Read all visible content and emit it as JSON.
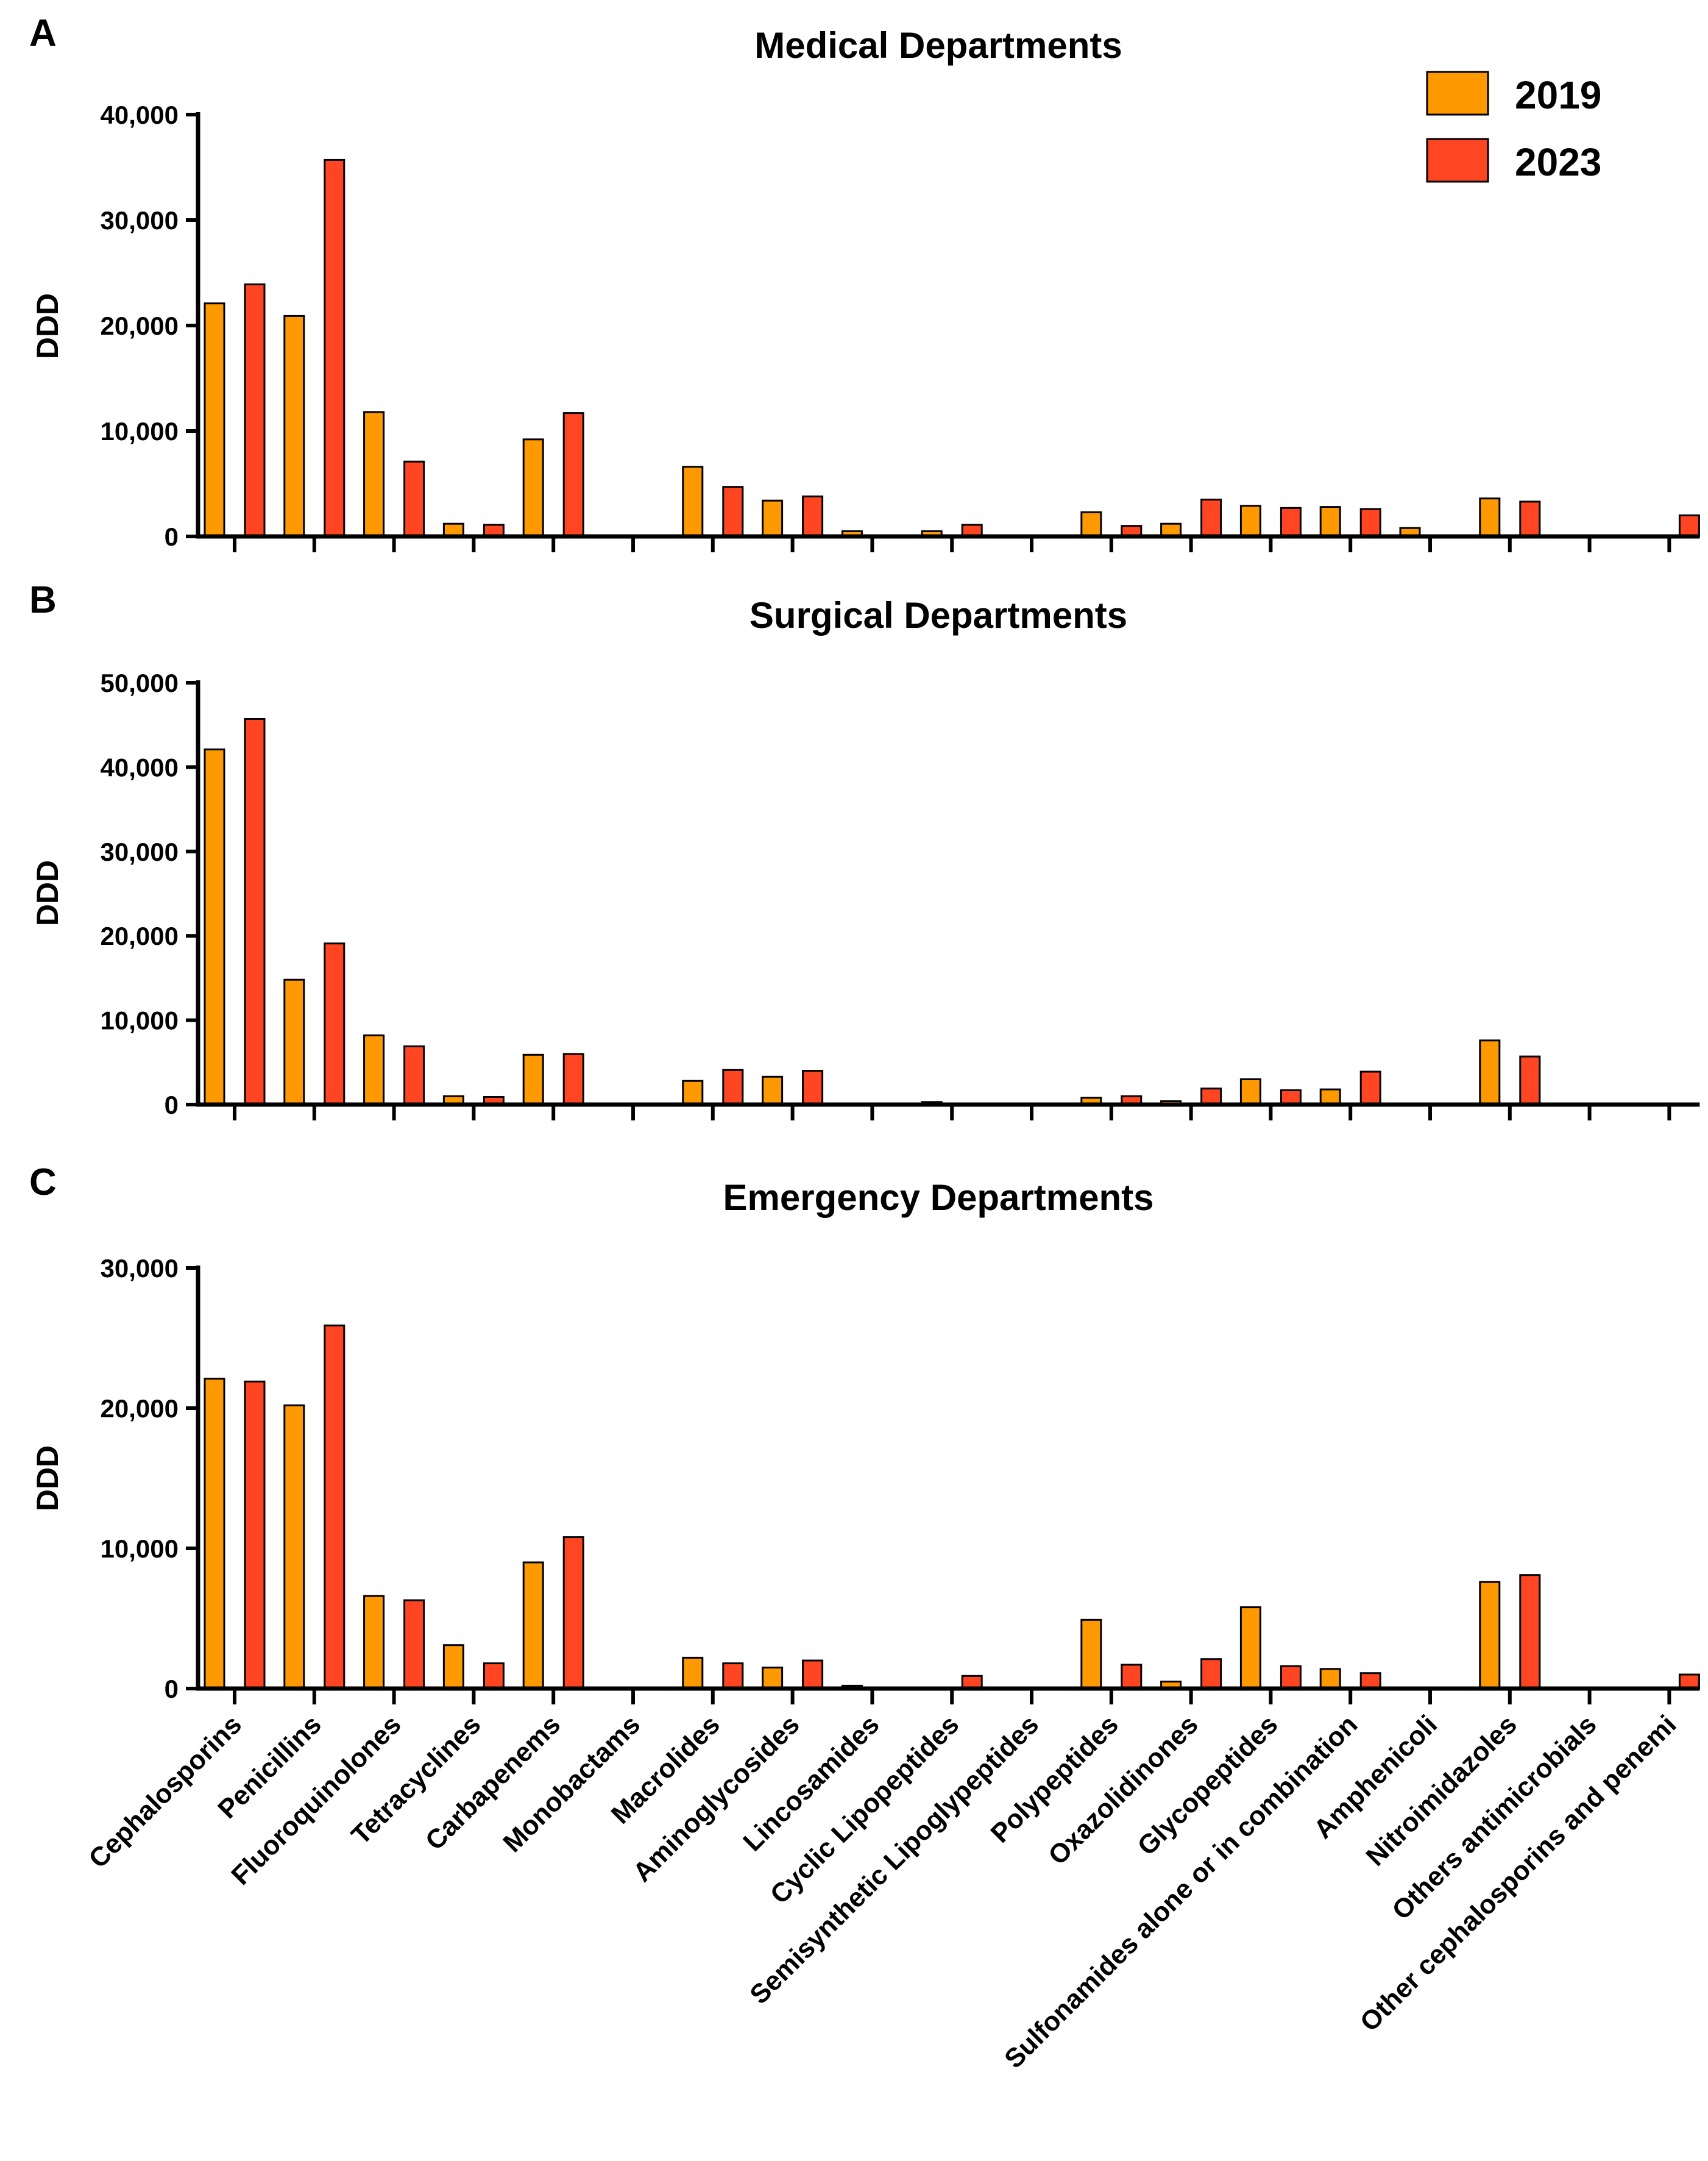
{
  "legend": [
    {
      "name": "2019",
      "color": "#FF9900"
    },
    {
      "name": "2023",
      "color": "#FF4521"
    }
  ],
  "chart_data": [
    {
      "type": "bar",
      "panel": "A",
      "title": "Medical Departments",
      "xlabel": "",
      "ylabel": "DDD",
      "ylim": [
        0,
        40000
      ],
      "yticks": [
        0,
        10000,
        20000,
        30000,
        40000
      ],
      "ytick_labels": [
        "0",
        "10,000",
        "20,000",
        "30,000",
        "40,000"
      ],
      "categories": [
        "Cephalosporins",
        "Penicillins",
        "Fluoroquinolones",
        "Tetracyclines",
        "Carbapenems",
        "Monobactams",
        "Macrolides",
        "Aminoglycosides",
        "Lincosamides",
        "Cyclic Lipopeptides",
        "Semisynthetic Lipoglypeptides",
        "Polypeptides",
        "Oxazolidinones",
        "Glycopeptides",
        "Sulfonamides alone or in combination",
        "Amphenicoli",
        "Nitroimidazoles",
        "Others antimicrobials",
        "Other cephalosporins and penemi"
      ],
      "series": [
        {
          "name": "2019",
          "values": [
            22100,
            20900,
            11800,
            1200,
            9200,
            0,
            6600,
            3400,
            500,
            500,
            0,
            2300,
            1200,
            2900,
            2800,
            800,
            3600,
            0,
            0
          ]
        },
        {
          "name": "2023",
          "values": [
            23900,
            35700,
            7100,
            1100,
            11700,
            0,
            4700,
            3800,
            0,
            1100,
            0,
            1000,
            3500,
            2700,
            2600,
            0,
            3300,
            0,
            2000
          ]
        }
      ]
    },
    {
      "type": "bar",
      "panel": "B",
      "title": "Surgical Departments",
      "xlabel": "",
      "ylabel": "DDD",
      "ylim": [
        0,
        50000
      ],
      "yticks": [
        0,
        10000,
        20000,
        30000,
        40000,
        50000
      ],
      "ytick_labels": [
        "0",
        "10,000",
        "20,000",
        "30,000",
        "40,000",
        "50,000"
      ],
      "categories": [
        "Cephalosporins",
        "Penicillins",
        "Fluoroquinolones",
        "Tetracyclines",
        "Carbapenems",
        "Monobactams",
        "Macrolides",
        "Aminoglycosides",
        "Lincosamides",
        "Cyclic Lipopeptides",
        "Semisynthetic Lipoglypeptides",
        "Polypeptides",
        "Oxazolidinones",
        "Glycopeptides",
        "Sulfonamides alone or in combination",
        "Amphenicoli",
        "Nitroimidazoles",
        "Others antimicrobials",
        "Other cephalosporins and penemi"
      ],
      "series": [
        {
          "name": "2019",
          "values": [
            42100,
            14800,
            8200,
            1000,
            5900,
            0,
            2800,
            3300,
            0,
            300,
            0,
            800,
            400,
            3000,
            1800,
            0,
            7600,
            0,
            0
          ]
        },
        {
          "name": "2023",
          "values": [
            45700,
            19100,
            6900,
            900,
            6000,
            0,
            4100,
            4000,
            0,
            0,
            0,
            1000,
            1900,
            1700,
            3900,
            0,
            5700,
            0,
            0
          ]
        }
      ]
    },
    {
      "type": "bar",
      "panel": "C",
      "title": "Emergency Departments",
      "xlabel": "",
      "ylabel": "DDD",
      "ylim": [
        0,
        30000
      ],
      "yticks": [
        0,
        10000,
        20000,
        30000
      ],
      "ytick_labels": [
        "0",
        "10,000",
        "20,000",
        "30,000"
      ],
      "categories": [
        "Cephalosporins",
        "Penicillins",
        "Fluoroquinolones",
        "Tetracyclines",
        "Carbapenems",
        "Monobactams",
        "Macrolides",
        "Aminoglycosides",
        "Lincosamides",
        "Cyclic Lipopeptides",
        "Semisynthetic Lipoglypeptides",
        "Polypeptides",
        "Oxazolidinones",
        "Glycopeptides",
        "Sulfonamides alone or in combination",
        "Amphenicoli",
        "Nitroimidazoles",
        "Others antimicrobials",
        "Other cephalosporins and penemi"
      ],
      "series": [
        {
          "name": "2019",
          "values": [
            22100,
            20200,
            6600,
            3100,
            9000,
            0,
            2200,
            1500,
            200,
            0,
            0,
            4900,
            500,
            5800,
            1400,
            0,
            7600,
            0,
            0
          ]
        },
        {
          "name": "2023",
          "values": [
            21900,
            25900,
            6300,
            1800,
            10800,
            0,
            1800,
            2000,
            0,
            900,
            0,
            1700,
            2100,
            1600,
            1100,
            0,
            8100,
            0,
            1000
          ]
        }
      ]
    }
  ]
}
